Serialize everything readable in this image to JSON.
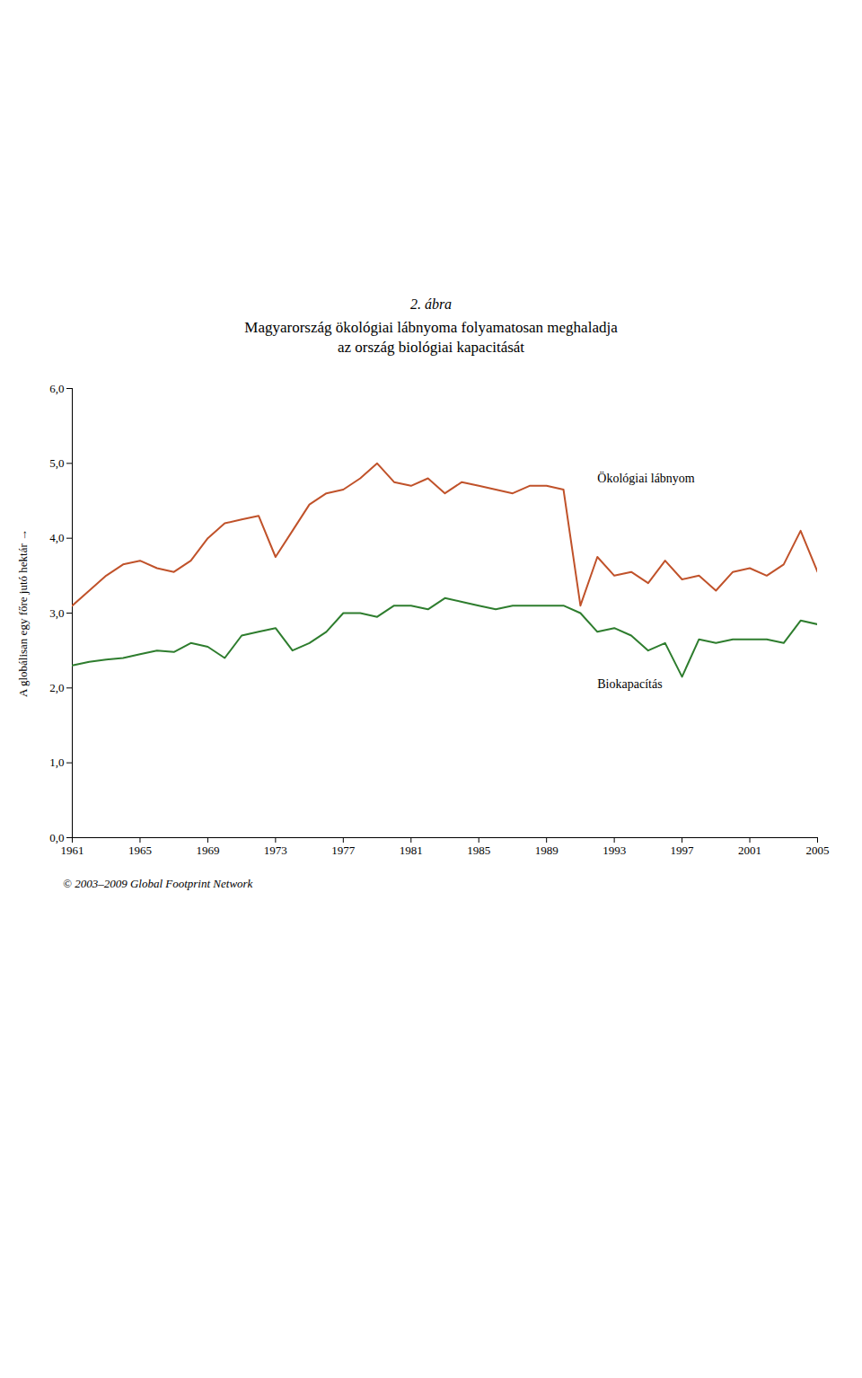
{
  "chart_data": {
    "type": "line",
    "title": "2. ábra",
    "subtitle": [
      "Magyarország ökológiai lábnyoma folyamatosan meghaladja",
      "az ország biológiai kapacitását"
    ],
    "caption": "© 2003–2009 Global Footprint Network",
    "y_label": "A globálisan egy főre jutó hektár",
    "x": [
      1961,
      1962,
      1963,
      1964,
      1965,
      1966,
      1967,
      1968,
      1969,
      1970,
      1971,
      1972,
      1973,
      1974,
      1975,
      1976,
      1977,
      1978,
      1979,
      1980,
      1981,
      1982,
      1983,
      1984,
      1985,
      1986,
      1987,
      1988,
      1989,
      1990,
      1991,
      1992,
      1993,
      1994,
      1995,
      1996,
      1997,
      1998,
      1999,
      2000,
      2001,
      2002,
      2003,
      2004,
      2005
    ],
    "series": [
      {
        "color": "#C0522A",
        "values": [
          3.1,
          3.3,
          3.5,
          3.65,
          3.7,
          3.6,
          3.55,
          3.7,
          4.0,
          4.2,
          4.25,
          4.3,
          3.75,
          4.1,
          4.45,
          4.6,
          4.65,
          4.8,
          5.0,
          4.75,
          4.7,
          4.8,
          4.6,
          4.75,
          4.7,
          4.65,
          4.6,
          4.7,
          4.7,
          4.65,
          3.1,
          3.75,
          3.5,
          3.55,
          3.4,
          3.7,
          3.45,
          3.5,
          3.3,
          3.55,
          3.6,
          3.5,
          3.65,
          4.1,
          3.55
        ]
      },
      {
        "color": "#2E7D2E",
        "values": [
          2.3,
          2.35,
          2.38,
          2.4,
          2.45,
          2.5,
          2.48,
          2.6,
          2.55,
          2.4,
          2.7,
          2.75,
          2.8,
          2.5,
          2.6,
          2.75,
          3.0,
          3.0,
          2.95,
          3.1,
          3.1,
          3.05,
          3.2,
          3.15,
          3.1,
          3.05,
          3.1,
          3.1,
          3.1,
          3.1,
          3.0,
          2.75,
          2.8,
          2.7,
          2.5,
          2.6,
          2.15,
          2.65,
          2.6,
          2.65,
          2.65,
          2.65,
          2.6,
          2.9,
          2.85
        ]
      }
    ],
    "annotations": [
      {
        "text": "Ökológiai lábnyom",
        "x": 1992,
        "y": 4.75
      },
      {
        "text": "Biokapacítás",
        "x": 1992,
        "y": 2.0
      }
    ],
    "xlim": [
      1961,
      2005
    ],
    "xticks": [
      1961,
      1965,
      1969,
      1973,
      1977,
      1981,
      1985,
      1989,
      1993,
      1997,
      2001,
      2005
    ],
    "ylim": [
      0.0,
      6.0
    ],
    "yticks": [
      {
        "value": 0.0,
        "label": "0,0"
      },
      {
        "value": 1.0,
        "label": "1,0"
      },
      {
        "value": 2.0,
        "label": "2,0"
      },
      {
        "value": 3.0,
        "label": "3,0"
      },
      {
        "value": 4.0,
        "label": "4,0"
      },
      {
        "value": 5.0,
        "label": "5,0"
      },
      {
        "value": 6.0,
        "label": "6,0"
      }
    ],
    "grid": false
  }
}
